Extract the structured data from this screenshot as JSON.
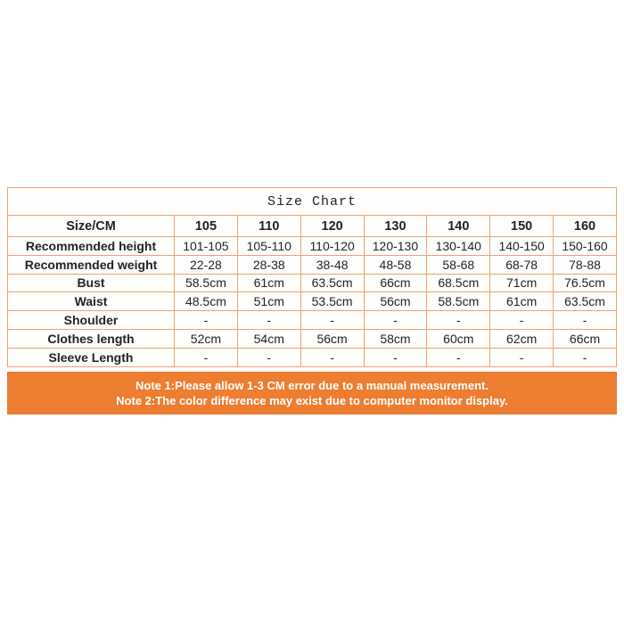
{
  "chart_data": {
    "type": "table",
    "title": "Size Chart",
    "columns": [
      "Size/CM",
      "105",
      "110",
      "120",
      "130",
      "140",
      "150",
      "160"
    ],
    "rows": [
      {
        "label": "Recommended height",
        "values": [
          "101-105",
          "105-110",
          "110-120",
          "120-130",
          "130-140",
          "140-150",
          "150-160"
        ]
      },
      {
        "label": "Recommended weight",
        "values": [
          "22-28",
          "28-38",
          "38-48",
          "48-58",
          "58-68",
          "68-78",
          "78-88"
        ]
      },
      {
        "label": "Bust",
        "values": [
          "58.5cm",
          "61cm",
          "63.5cm",
          "66cm",
          "68.5cm",
          "71cm",
          "76.5cm"
        ]
      },
      {
        "label": "Waist",
        "values": [
          "48.5cm",
          "51cm",
          "53.5cm",
          "56cm",
          "58.5cm",
          "61cm",
          "63.5cm"
        ]
      },
      {
        "label": "Shoulder",
        "values": [
          "-",
          "-",
          "-",
          "-",
          "-",
          "-",
          "-"
        ]
      },
      {
        "label": "Clothes length",
        "values": [
          "52cm",
          "54cm",
          "56cm",
          "58cm",
          "60cm",
          "62cm",
          "66cm"
        ]
      },
      {
        "label": "Sleeve Length",
        "values": [
          "-",
          "-",
          "-",
          "-",
          "-",
          "-",
          "-"
        ]
      }
    ],
    "notes": [
      "Note 1:Please allow 1-3 CM error due to a manual measurement.",
      "Note 2:The color difference may exist due to computer monitor display."
    ],
    "layout_hints": {
      "grid": true,
      "title_position": "top-center-spanning-row",
      "first_column_is_row_labels": true
    },
    "colors": {
      "table_border": "#f2a16c",
      "note_background": "#ed7d31",
      "note_text": "#ffffff",
      "cell_text": "#222222",
      "page_background": "#ffffff"
    }
  }
}
